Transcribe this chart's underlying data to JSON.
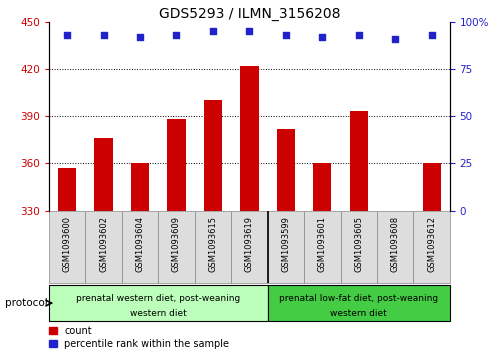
{
  "title": "GDS5293 / ILMN_3156208",
  "samples": [
    "GSM1093600",
    "GSM1093602",
    "GSM1093604",
    "GSM1093609",
    "GSM1093615",
    "GSM1093619",
    "GSM1093599",
    "GSM1093601",
    "GSM1093605",
    "GSM1093608",
    "GSM1093612"
  ],
  "counts": [
    357,
    376,
    360,
    388,
    400,
    422,
    382,
    360,
    393,
    330,
    360
  ],
  "percentiles": [
    93,
    93,
    92,
    93,
    95,
    95,
    93,
    92,
    93,
    91,
    93
  ],
  "ylim_left": [
    330,
    450
  ],
  "yticks_left": [
    330,
    360,
    390,
    420,
    450
  ],
  "ylim_right": [
    0,
    100
  ],
  "yticks_right": [
    0,
    25,
    50,
    75,
    100
  ],
  "bar_color": "#cc0000",
  "dot_color": "#2222cc",
  "group1_label_line1": "prenatal western diet, post-weaning",
  "group1_label_line2": "western diet",
  "group2_label_line1": "prenatal low-fat diet, post-weaning",
  "group2_label_line2": "western diet",
  "group1_color": "#bbffbb",
  "group2_color": "#44cc44",
  "group1_count": 6,
  "group2_count": 5,
  "legend_count_label": "count",
  "legend_pct_label": "percentile rank within the sample",
  "protocol_label": "protocol",
  "background_color": "#ffffff",
  "cell_bg": "#dddddd",
  "cell_border": "#888888"
}
